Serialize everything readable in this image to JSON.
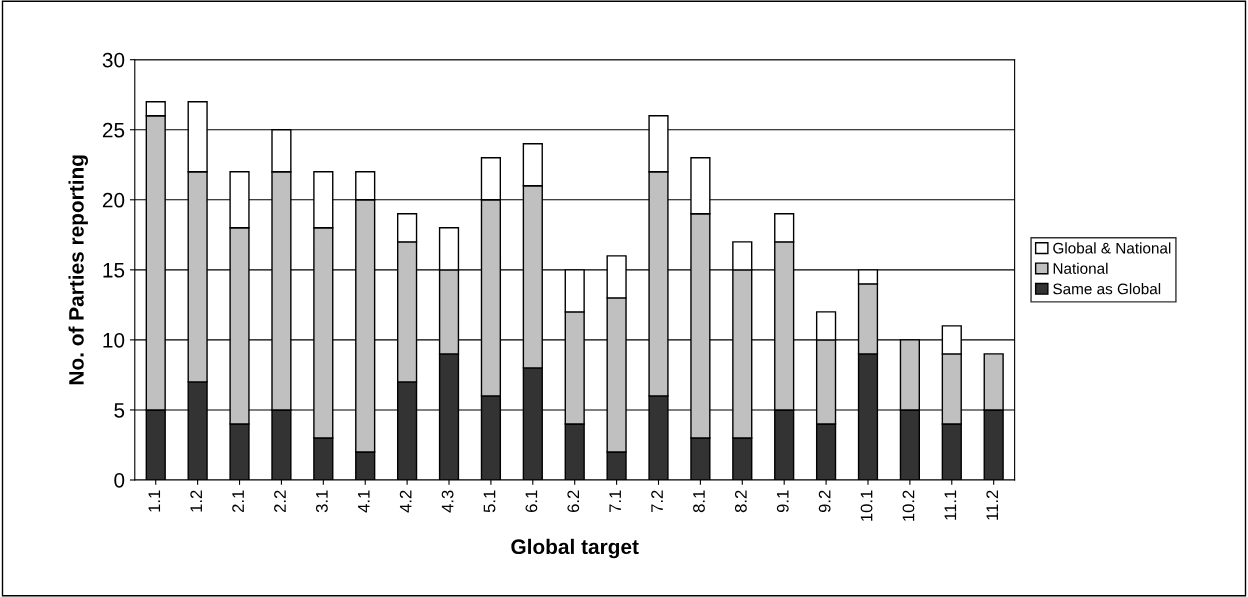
{
  "chart_data": {
    "type": "bar",
    "stacked": true,
    "xlabel": "Global target",
    "ylabel": "No. of Parties reporting",
    "categories": [
      "1.1",
      "1.2",
      "2.1",
      "2.2",
      "3.1",
      "4.1",
      "4.2",
      "4.3",
      "5.1",
      "6.1",
      "6.2",
      "7.1",
      "7.2",
      "8.1",
      "8.2",
      "9.1",
      "9.2",
      "10.1",
      "10.2",
      "11.1",
      "11.2"
    ],
    "series": [
      {
        "name": "Same as Global",
        "color": "#333333",
        "values": [
          5,
          7,
          4,
          5,
          3,
          2,
          7,
          9,
          6,
          8,
          4,
          2,
          6,
          3,
          3,
          5,
          4,
          9,
          5,
          4,
          5
        ]
      },
      {
        "name": "National",
        "color": "#c0c0c0",
        "values": [
          21,
          15,
          14,
          17,
          15,
          18,
          10,
          6,
          14,
          13,
          8,
          11,
          16,
          16,
          12,
          12,
          6,
          5,
          5,
          5,
          4
        ]
      },
      {
        "name": "Global & National",
        "color": "#ffffff",
        "values": [
          1,
          5,
          4,
          3,
          4,
          2,
          2,
          3,
          3,
          3,
          3,
          3,
          4,
          4,
          2,
          2,
          2,
          1,
          0,
          2,
          0
        ]
      }
    ],
    "ylim": [
      0,
      30
    ],
    "yticks": [
      0,
      5,
      10,
      15,
      20,
      25,
      30
    ],
    "grid": "y",
    "legend": "right"
  }
}
